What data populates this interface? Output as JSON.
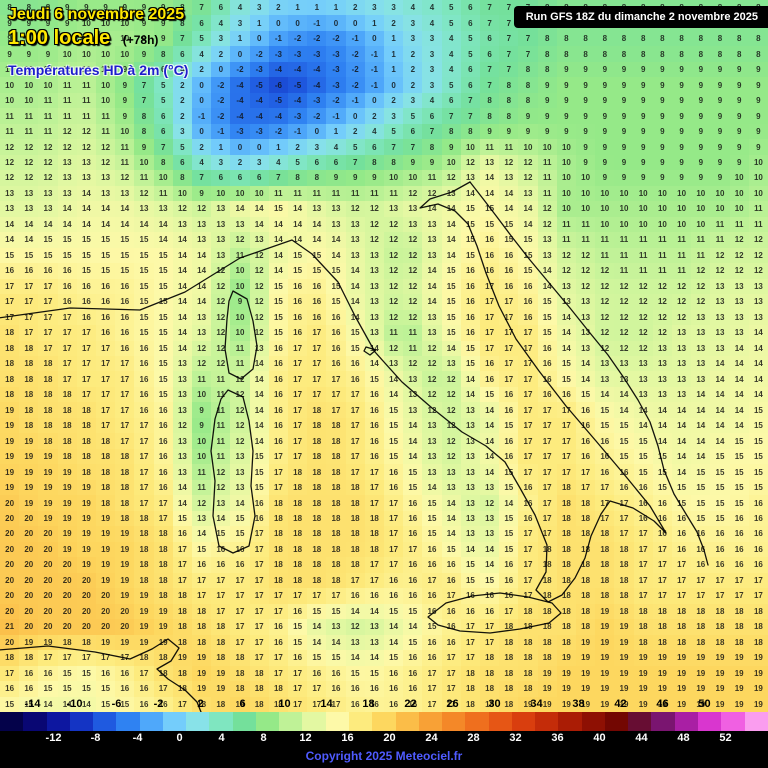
{
  "header": {
    "date_line": "Jeudi 6 novembre 2025",
    "time_line": "1:00 locale",
    "offset_label": "(+78h)",
    "subtitle": "Températures HD à 2m (°C)",
    "run_info": "Run GFS 18Z du dimanche 2 novembre 2025"
  },
  "footer": {
    "copyright": "Copyright 2025 Meteociel.fr"
  },
  "legend": {
    "top_values": [
      -14,
      -10,
      -6,
      -2,
      2,
      6,
      10,
      14,
      18,
      22,
      26,
      30,
      34,
      38,
      42,
      46,
      50
    ],
    "bottom_values": [
      -12,
      -8,
      -4,
      0,
      4,
      8,
      12,
      16,
      20,
      24,
      28,
      32,
      36,
      40,
      44,
      48,
      52
    ],
    "scale_min": -14,
    "scale_max": 52,
    "bucket_colors": [
      "#04024a",
      "#090773",
      "#0d17a0",
      "#1434c4",
      "#1f5ae0",
      "#2f82f2",
      "#4fa8fa",
      "#74cdfb",
      "#88e2e8",
      "#7fe6c0",
      "#74e09b",
      "#95e988",
      "#bff297",
      "#e3f8a2",
      "#fdf9a8",
      "#fdeb7e",
      "#fdd75f",
      "#fbbd48",
      "#f8a136",
      "#f48828",
      "#ef6f1e",
      "#e65615",
      "#d93e0e",
      "#c42c09",
      "#aa1c05",
      "#8e1003",
      "#730702",
      "#670d33",
      "#7a1570",
      "#a91fa4",
      "#d936cf",
      "#f060e2",
      "#fa9def"
    ]
  },
  "chart_data": {
    "type": "heatmap",
    "title": "Températures HD à 2m (°C)",
    "model_run": "Run GFS 18Z du dimanche 2 novembre 2025",
    "valid_time": "Jeudi 6 novembre 2025 1:00 locale (+78h)",
    "unit": "°C",
    "scale_min": -14,
    "scale_max": 52,
    "grid_cols": 20,
    "grid_rows": 18,
    "temperatures_c": [
      [
        8,
        8,
        9,
        9,
        9,
        8,
        4,
        2,
        2,
        3,
        4,
        5,
        7,
        7,
        8,
        8,
        8,
        8,
        8,
        8
      ],
      [
        9,
        9,
        10,
        10,
        9,
        5,
        1,
        -2,
        -3,
        -1,
        2,
        4,
        6,
        7,
        8,
        8,
        8,
        8,
        8,
        8
      ],
      [
        10,
        10,
        11,
        9,
        5,
        0,
        -4,
        -6,
        -4,
        -2,
        1,
        4,
        7,
        8,
        9,
        9,
        9,
        9,
        9,
        9
      ],
      [
        11,
        11,
        12,
        10,
        6,
        -1,
        -4,
        -3,
        -1,
        2,
        5,
        7,
        8,
        9,
        9,
        9,
        9,
        9,
        9,
        9
      ],
      [
        12,
        12,
        13,
        12,
        9,
        5,
        3,
        5,
        7,
        8,
        9,
        10,
        14,
        12,
        10,
        9,
        9,
        9,
        9,
        10
      ],
      [
        13,
        13,
        14,
        14,
        13,
        12,
        14,
        15,
        13,
        12,
        13,
        14,
        15,
        14,
        10,
        10,
        10,
        10,
        10,
        11
      ],
      [
        15,
        15,
        15,
        15,
        15,
        14,
        11,
        14,
        15,
        13,
        11,
        14,
        16,
        15,
        12,
        11,
        11,
        11,
        12,
        12
      ],
      [
        17,
        17,
        16,
        16,
        15,
        14,
        9,
        16,
        16,
        13,
        12,
        15,
        17,
        16,
        13,
        12,
        12,
        12,
        13,
        13
      ],
      [
        18,
        17,
        17,
        16,
        15,
        13,
        10,
        16,
        17,
        14,
        10,
        14,
        17,
        17,
        14,
        12,
        12,
        13,
        13,
        14
      ],
      [
        18,
        18,
        17,
        17,
        15,
        11,
        12,
        17,
        17,
        16,
        13,
        11,
        16,
        17,
        15,
        13,
        13,
        13,
        14,
        14
      ],
      [
        19,
        18,
        18,
        17,
        16,
        9,
        12,
        17,
        18,
        17,
        14,
        12,
        13,
        17,
        17,
        15,
        14,
        14,
        14,
        15
      ],
      [
        19,
        19,
        18,
        18,
        16,
        10,
        13,
        17,
        18,
        17,
        15,
        12,
        14,
        17,
        17,
        16,
        15,
        14,
        15,
        15
      ],
      [
        20,
        19,
        19,
        18,
        17,
        12,
        14,
        18,
        18,
        18,
        16,
        14,
        12,
        16,
        18,
        17,
        16,
        15,
        15,
        16
      ],
      [
        20,
        20,
        19,
        19,
        18,
        15,
        16,
        18,
        18,
        18,
        17,
        15,
        13,
        17,
        18,
        18,
        17,
        16,
        16,
        16
      ],
      [
        20,
        20,
        20,
        19,
        18,
        17,
        17,
        18,
        18,
        17,
        16,
        17,
        15,
        17,
        18,
        18,
        17,
        17,
        17,
        17
      ],
      [
        21,
        20,
        20,
        20,
        19,
        18,
        17,
        16,
        13,
        12,
        14,
        16,
        17,
        18,
        18,
        19,
        18,
        18,
        18,
        18
      ],
      [
        18,
        16,
        15,
        16,
        18,
        19,
        18,
        17,
        16,
        15,
        16,
        17,
        18,
        18,
        19,
        19,
        19,
        19,
        19,
        19
      ],
      [
        15,
        14,
        14,
        15,
        16,
        18,
        19,
        18,
        17,
        16,
        16,
        17,
        18,
        19,
        19,
        19,
        19,
        19,
        19,
        19
      ]
    ]
  }
}
